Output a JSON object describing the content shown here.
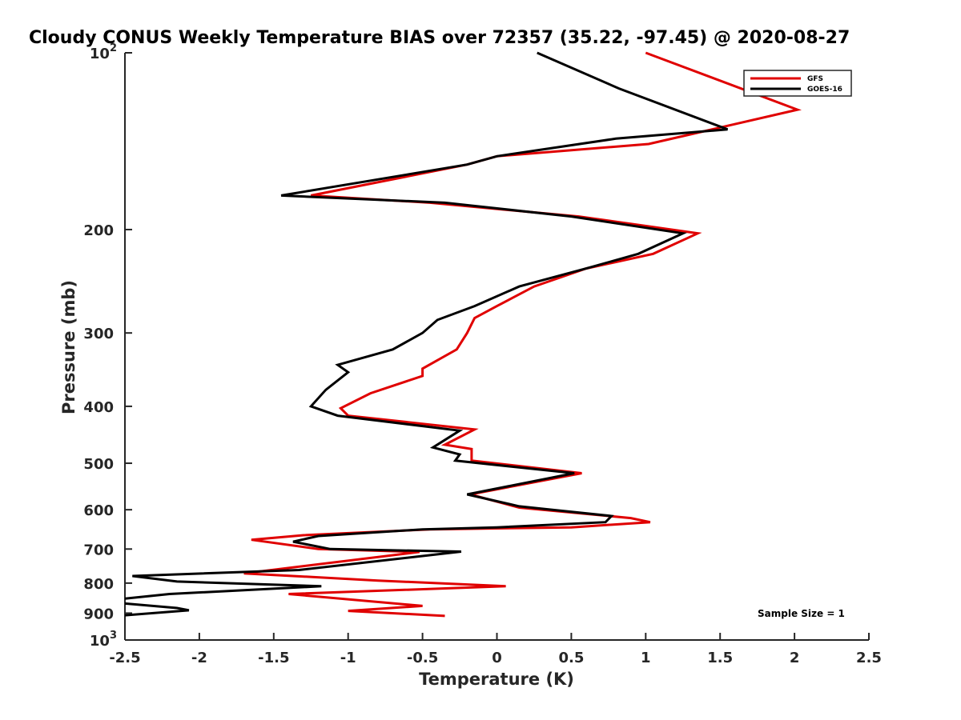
{
  "chart_data": {
    "type": "line",
    "title": "Cloudy CONUS Weekly Temperature BIAS over 72357 (35.22, -97.45) @ 2020-08-27",
    "xlabel": "Temperature (K)",
    "ylabel": "Pressure (mb)",
    "xlim": [
      -2.5,
      2.5
    ],
    "ylim": [
      100,
      1000
    ],
    "y_scale": "log",
    "y_reversed": true,
    "x_ticks": [
      "-2.5",
      "-2",
      "-1.5",
      "-1",
      "-0.5",
      "0",
      "0.5",
      "1",
      "1.5",
      "2",
      "2.5"
    ],
    "y_ticks": [
      {
        "value": 100,
        "label": "10",
        "sup": "2"
      },
      {
        "value": 200,
        "label": "200"
      },
      {
        "value": 300,
        "label": "300"
      },
      {
        "value": 400,
        "label": "400"
      },
      {
        "value": 500,
        "label": "500"
      },
      {
        "value": 600,
        "label": "600"
      },
      {
        "value": 700,
        "label": "700"
      },
      {
        "value": 800,
        "label": "800"
      },
      {
        "value": 900,
        "label": "900"
      },
      {
        "value": 1000,
        "label": "10",
        "sup": "3"
      }
    ],
    "grid": false,
    "legend_position": "top-right",
    "annotation": "Sample Size = 1",
    "series": [
      {
        "name": "GFS",
        "color": "#e00000",
        "points": [
          [
            1.0,
            100
          ],
          [
            2.02,
            125
          ],
          [
            1.02,
            143
          ],
          [
            0.0,
            150
          ],
          [
            -0.2,
            155
          ],
          [
            -1.25,
            175
          ],
          [
            -0.45,
            180
          ],
          [
            0.55,
            190
          ],
          [
            1.35,
            203
          ],
          [
            1.05,
            220
          ],
          [
            0.6,
            233
          ],
          [
            0.25,
            250
          ],
          [
            0.0,
            270
          ],
          [
            -0.15,
            283
          ],
          [
            -0.2,
            300
          ],
          [
            -0.27,
            320
          ],
          [
            -0.5,
            345
          ],
          [
            -0.5,
            355
          ],
          [
            -0.85,
            380
          ],
          [
            -1.05,
            403
          ],
          [
            -1.0,
            415
          ],
          [
            -0.15,
            438
          ],
          [
            -0.35,
            465
          ],
          [
            -0.17,
            473
          ],
          [
            -0.17,
            495
          ],
          [
            0.57,
            520
          ],
          [
            -0.18,
            565
          ],
          [
            0.15,
            595
          ],
          [
            0.9,
            620
          ],
          [
            1.03,
            630
          ],
          [
            0.5,
            643
          ],
          [
            -0.45,
            648
          ],
          [
            -1.3,
            663
          ],
          [
            -1.65,
            675
          ],
          [
            -1.2,
            700
          ],
          [
            -0.52,
            708
          ],
          [
            -1.7,
            770
          ],
          [
            -0.8,
            792
          ],
          [
            0.06,
            810
          ],
          [
            -1.4,
            835
          ],
          [
            -0.5,
            875
          ],
          [
            -1.0,
            892
          ],
          [
            -0.35,
            910
          ]
        ]
      },
      {
        "name": "GOES-16",
        "color": "#000000",
        "points": [
          [
            0.27,
            100
          ],
          [
            0.82,
            115
          ],
          [
            1.55,
            135
          ],
          [
            0.8,
            140
          ],
          [
            0.0,
            150
          ],
          [
            -0.2,
            155
          ],
          [
            -1.45,
            175
          ],
          [
            -0.35,
            180
          ],
          [
            0.5,
            190
          ],
          [
            1.25,
            203
          ],
          [
            0.95,
            220
          ],
          [
            0.6,
            233
          ],
          [
            0.15,
            250
          ],
          [
            -0.15,
            270
          ],
          [
            -0.4,
            285
          ],
          [
            -0.5,
            300
          ],
          [
            -0.7,
            320
          ],
          [
            -1.07,
            340
          ],
          [
            -1.0,
            350
          ],
          [
            -1.15,
            375
          ],
          [
            -1.25,
            400
          ],
          [
            -1.07,
            415
          ],
          [
            -0.25,
            440
          ],
          [
            -0.43,
            470
          ],
          [
            -0.25,
            483
          ],
          [
            -0.28,
            495
          ],
          [
            0.52,
            520
          ],
          [
            -0.2,
            565
          ],
          [
            0.15,
            592
          ],
          [
            0.77,
            615
          ],
          [
            0.73,
            630
          ],
          [
            0.0,
            643
          ],
          [
            -0.5,
            648
          ],
          [
            -1.2,
            665
          ],
          [
            -1.37,
            680
          ],
          [
            -1.12,
            700
          ],
          [
            -0.24,
            707
          ],
          [
            -1.33,
            760
          ],
          [
            -2.45,
            778
          ],
          [
            -2.15,
            795
          ],
          [
            -1.18,
            810
          ],
          [
            -2.2,
            835
          ],
          [
            -2.5,
            850
          ],
          [
            -2.65,
            860
          ],
          [
            -2.15,
            882
          ],
          [
            -2.07,
            890
          ],
          [
            -2.55,
            910
          ]
        ]
      }
    ]
  }
}
